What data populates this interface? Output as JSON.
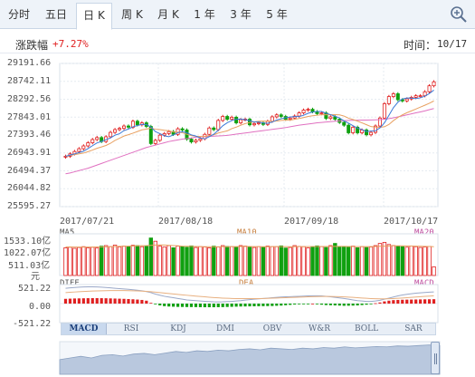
{
  "tabs": [
    {
      "label": "分时",
      "active": false
    },
    {
      "label": "五日",
      "active": false
    },
    {
      "label": "日 K",
      "active": true
    },
    {
      "label": "周 K",
      "active": false
    },
    {
      "label": "月 K",
      "active": false
    },
    {
      "label": "1 年",
      "active": false
    },
    {
      "label": "3 年",
      "active": false
    },
    {
      "label": "5 年",
      "active": false
    }
  ],
  "info": {
    "change_label": "涨跌幅",
    "change_value": "+7.27%",
    "time_label": "时间：",
    "time_value": "10/17"
  },
  "colors": {
    "up": "#e02020",
    "down": "#10a010",
    "ma5": "#3a7ad8",
    "ma10": "#e8a060",
    "ma20": "#e070c0",
    "dif": "#9aa8c8",
    "dea": "#e8b080"
  },
  "chart_data": [
    {
      "type": "candlestick",
      "title": "",
      "legend": [
        "MA5",
        "MA10",
        "MA20"
      ],
      "y_ticks": [
        "29191.66",
        "28742.11",
        "28292.56",
        "27843.01",
        "27393.46",
        "26943.91",
        "26494.37",
        "26044.82",
        "25595.27"
      ],
      "ylim": [
        25595.27,
        29191.66
      ],
      "x_ticks": [
        "2017/07/21",
        "2017/08/18",
        "2017/09/18",
        "2017/10/17"
      ],
      "grid": true,
      "close": [
        26860,
        26920,
        26980,
        27050,
        27120,
        27200,
        27280,
        27330,
        27230,
        27350,
        27460,
        27530,
        27560,
        27620,
        27590,
        27740,
        27650,
        27700,
        27610,
        27180,
        27260,
        27390,
        27430,
        27480,
        27410,
        27550,
        27520,
        27290,
        27220,
        27260,
        27300,
        27410,
        27570,
        27530,
        27760,
        27860,
        27790,
        27840,
        27700,
        27780,
        27790,
        27650,
        27680,
        27700,
        27660,
        27740,
        27850,
        27900,
        27860,
        27790,
        27820,
        27870,
        27950,
        28020,
        28040,
        27980,
        27930,
        27950,
        27810,
        27850,
        27790,
        27710,
        27640,
        27450,
        27590,
        27450,
        27520,
        27400,
        27460,
        27620,
        27820,
        28180,
        28360,
        28430,
        28280,
        28250,
        28300,
        28340,
        28380,
        28380,
        28480,
        28630,
        28730
      ],
      "ma5": [
        26860,
        26890,
        26920,
        26953,
        26986,
        27054,
        27126,
        27196,
        27232,
        27278,
        27320,
        27390,
        27426,
        27504,
        27544,
        27600,
        27632,
        27660,
        27658,
        27596,
        27480,
        27428,
        27374,
        27350,
        27396,
        27452,
        27478,
        27450,
        27398,
        27368,
        27318,
        27296,
        27352,
        27414,
        27514,
        27626,
        27702,
        27756,
        27790,
        27794,
        27780,
        27752,
        27720,
        27720,
        27696,
        27686,
        27720,
        27770,
        27802,
        27828,
        27846,
        27858,
        27858,
        27890,
        27940,
        27972,
        27984,
        27984,
        27942,
        27904,
        27866,
        27822,
        27750,
        27690,
        27628,
        27568,
        27530,
        27482,
        27494,
        27500,
        27574,
        27700,
        27888,
        28082,
        28218,
        28300,
        28324,
        28320,
        28310,
        28328,
        28368,
        28436,
        28522
      ],
      "ma10": [
        26860,
        26880,
        26900,
        26920,
        26940,
        26976,
        27016,
        27060,
        27094,
        27132,
        27186,
        27258,
        27312,
        27368,
        27402,
        27440,
        27482,
        27524,
        27542,
        27570,
        27540,
        27530,
        27514,
        27502,
        27470,
        27466,
        27452,
        27412,
        27378,
        27362,
        27356,
        27360,
        27380,
        27400,
        27444,
        27472,
        27498,
        27554,
        27592,
        27640,
        27680,
        27708,
        27724,
        27740,
        27744,
        27740,
        27738,
        27744,
        27760,
        27766,
        27766,
        27790,
        27810,
        27832,
        27860,
        27878,
        27890,
        27904,
        27902,
        27904,
        27906,
        27900,
        27870,
        27816,
        27784,
        27744,
        27700,
        27652,
        27606,
        27594,
        27586,
        27600,
        27658,
        27756,
        27836,
        27900,
        27954,
        28000,
        28046,
        28094,
        28142,
        28192,
        28250
      ],
      "ma20": [
        26420,
        26440,
        26470,
        26500,
        26530,
        26560,
        26600,
        26640,
        26680,
        26720,
        26760,
        26800,
        26840,
        26880,
        26920,
        26960,
        27000,
        27040,
        27080,
        27110,
        27140,
        27170,
        27200,
        27230,
        27250,
        27270,
        27290,
        27305,
        27320,
        27340,
        27350,
        27355,
        27360,
        27365,
        27370,
        27375,
        27385,
        27400,
        27415,
        27430,
        27445,
        27460,
        27475,
        27490,
        27505,
        27520,
        27535,
        27550,
        27565,
        27580,
        27600,
        27620,
        27640,
        27655,
        27670,
        27685,
        27700,
        27710,
        27720,
        27730,
        27740,
        27748,
        27755,
        27760,
        27762,
        27765,
        27768,
        27770,
        27772,
        27776,
        27780,
        27790,
        27805,
        27825,
        27850,
        27875,
        27900,
        27925,
        27950,
        27975,
        28000,
        28030,
        28060
      ]
    },
    {
      "type": "bar",
      "title": "",
      "legend": [
        "MA5",
        "MA10",
        "MA20"
      ],
      "y_ticks": [
        "1533.10亿",
        "1022.07亿",
        "511.03亿",
        "元"
      ],
      "ylim": [
        0,
        1533.1
      ],
      "values": [
        1020,
        1040,
        1000,
        1030,
        1060,
        1020,
        1040,
        1010,
        1080,
        1100,
        1060,
        1120,
        1050,
        1080,
        1060,
        1110,
        1100,
        1060,
        1070,
        1380,
        1260,
        1080,
        1050,
        1100,
        1020,
        1080,
        1060,
        1040,
        1090,
        1030,
        1060,
        1050,
        1020,
        1080,
        1050,
        1100,
        1070,
        1060,
        1040,
        1100,
        1080,
        1050,
        1030,
        1060,
        1040,
        1080,
        1060,
        1060,
        1090,
        1010,
        1030,
        1100,
        1070,
        1060,
        1020,
        1050,
        1090,
        1060,
        1030,
        1100,
        1180,
        1050,
        1060,
        1040,
        1080,
        1020,
        1060,
        1030,
        1050,
        1100,
        1180,
        1220,
        1140,
        1100,
        1070,
        1060,
        1040,
        1080,
        1060,
        1030,
        1050,
        1070,
        320
      ],
      "ma_line": [
        1050,
        1048,
        1046,
        1045,
        1044,
        1045,
        1047,
        1050,
        1052,
        1056,
        1060,
        1065,
        1070,
        1075,
        1080,
        1085,
        1090,
        1095,
        1100,
        1110,
        1120,
        1125,
        1120,
        1110,
        1100,
        1090,
        1080,
        1075,
        1070,
        1066,
        1063,
        1060,
        1058,
        1057,
        1056,
        1058,
        1060,
        1062,
        1064,
        1066,
        1068,
        1066,
        1064,
        1062,
        1060,
        1060,
        1061,
        1062,
        1063,
        1062,
        1060,
        1061,
        1062,
        1063,
        1064,
        1065,
        1066,
        1067,
        1068,
        1070,
        1072,
        1072,
        1070,
        1068,
        1066,
        1064,
        1062,
        1062,
        1064,
        1068,
        1074,
        1080,
        1086,
        1090,
        1092,
        1090,
        1086,
        1082,
        1078,
        1074,
        1070,
        1066,
        1060
      ]
    },
    {
      "type": "bar",
      "title": "",
      "legend": [
        "DIFF",
        "DEA",
        "MACD"
      ],
      "y_ticks": [
        "521.22",
        "0.00",
        "-521.22"
      ],
      "ylim": [
        -521.22,
        521.22
      ],
      "macd": [
        130,
        135,
        140,
        142,
        145,
        148,
        150,
        150,
        148,
        146,
        142,
        138,
        134,
        130,
        124,
        118,
        110,
        100,
        80,
        20,
        -20,
        -50,
        -70,
        -80,
        -85,
        -90,
        -92,
        -94,
        -95,
        -96,
        -98,
        -100,
        -100,
        -100,
        -98,
        -96,
        -92,
        -88,
        -84,
        -80,
        -78,
        -76,
        -74,
        -72,
        -70,
        -68,
        -66,
        -60,
        -55,
        -45,
        -35,
        -25,
        -15,
        -10,
        -5,
        0,
        -20,
        -30,
        -40,
        -45,
        -50,
        -55,
        -60,
        -58,
        -55,
        -50,
        -40,
        -30,
        -10,
        10,
        30,
        60,
        80,
        95,
        100,
        105,
        108,
        110,
        112,
        114,
        116,
        118,
        120
      ],
      "dif": [
        420,
        430,
        440,
        450,
        455,
        460,
        460,
        455,
        450,
        440,
        430,
        420,
        410,
        400,
        390,
        380,
        365,
        350,
        330,
        300,
        260,
        230,
        200,
        180,
        160,
        140,
        120,
        100,
        90,
        80,
        70,
        62,
        55,
        50,
        48,
        50,
        55,
        60,
        70,
        80,
        95,
        110,
        120,
        130,
        140,
        150,
        160,
        170,
        180,
        185,
        190,
        195,
        200,
        205,
        210,
        215,
        215,
        210,
        200,
        185,
        170,
        155,
        140,
        120,
        100,
        80,
        70,
        60,
        60,
        70,
        90,
        120,
        150,
        180,
        210,
        235,
        255,
        270,
        285,
        295,
        305,
        312,
        320
      ],
      "dea": [
        300,
        310,
        318,
        325,
        332,
        338,
        343,
        348,
        352,
        355,
        357,
        358,
        358,
        357,
        355,
        352,
        348,
        342,
        335,
        325,
        314,
        302,
        290,
        277,
        265,
        252,
        240,
        228,
        217,
        206,
        195,
        185,
        175,
        165,
        157,
        150,
        145,
        141,
        138,
        136,
        135,
        135,
        136,
        138,
        141,
        144,
        148,
        152,
        157,
        162,
        167,
        171,
        176,
        181,
        185,
        190,
        193,
        195,
        196,
        195,
        193,
        189,
        184,
        178,
        170,
        162,
        153,
        145,
        138,
        133,
        130,
        130,
        133,
        138,
        145,
        153,
        162,
        171,
        180,
        189,
        198,
        206,
        214
      ]
    }
  ],
  "indicators": [
    "MACD",
    "RSI",
    "KDJ",
    "DMI",
    "OBV",
    "W&R",
    "BOLL",
    "SAR"
  ],
  "overview": [
    0.55,
    0.5,
    0.45,
    0.5,
    0.42,
    0.4,
    0.44,
    0.38,
    0.36,
    0.4,
    0.35,
    0.3,
    0.33,
    0.28,
    0.3,
    0.26,
    0.28,
    0.24,
    0.22,
    0.25,
    0.2,
    0.22,
    0.24,
    0.2,
    0.22,
    0.18,
    0.2,
    0.16,
    0.19,
    0.17,
    0.15,
    0.16,
    0.13,
    0.14,
    0.12,
    0.1,
    0.12
  ]
}
